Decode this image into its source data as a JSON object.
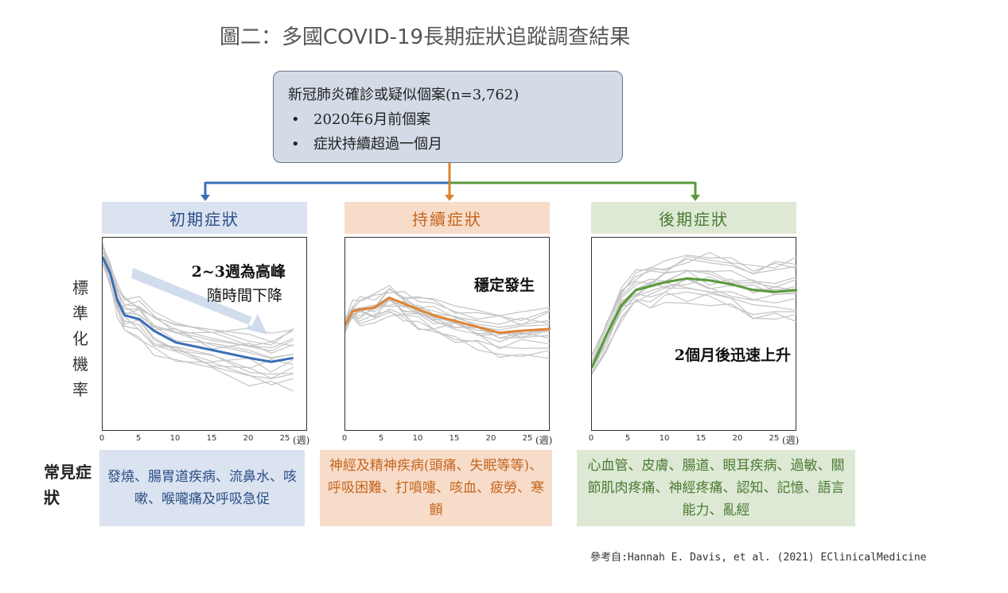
{
  "title": "圖二：多國COVID-19長期症狀追蹤調查結果",
  "top_box": {
    "heading": "新冠肺炎確診或疑似個案(n=3,762)",
    "bullets": [
      "2020年6月前個案",
      "症狀持續超過一個月"
    ]
  },
  "colors": {
    "blue": "#3a6fb7",
    "orange": "#de8433",
    "green": "#5a9a3a",
    "gray_lines": "#c4c4c4"
  },
  "y_axis_label": "標準化機率",
  "common_label": "常見症狀",
  "x_ticks": [
    "0",
    "5",
    "10",
    "15",
    "20",
    "25"
  ],
  "x_unit": "(週)",
  "panels": [
    {
      "header": "初期症狀",
      "annotation": [
        "2~3週為高峰",
        "隨時間下降"
      ],
      "symptoms": "發燒、腸胃道疾病、流鼻水、咳嗽、喉嚨痛及呼吸急促"
    },
    {
      "header": "持續症狀",
      "annotation": [
        "穩定發生"
      ],
      "symptoms": "神經及精神疾病(頭痛、失眠等等)、呼吸困難、打噴嚏、咳血、疲勞、寒顫"
    },
    {
      "header": "後期症狀",
      "annotation": [
        "2個月後迅速上升"
      ],
      "symptoms": "心血管、皮膚、腸道、眼耳疾病、過敏、關節肌肉疼痛、神經疼痛、認知、記憶、語言能力、亂經"
    }
  ],
  "reference": "參考自:Hannah E. Davis, et al. (2021) EClinicalMedicine",
  "chart_data": [
    {
      "type": "line",
      "x": [
        0,
        1,
        2,
        3,
        5,
        7,
        10,
        15,
        20,
        23,
        26
      ],
      "ylim": [
        0,
        1
      ],
      "xlim": [
        0,
        28
      ],
      "series": [
        {
          "values": [
            0.9,
            0.82,
            0.68,
            0.6,
            0.58,
            0.52,
            0.46,
            0.42,
            0.38,
            0.36,
            0.38
          ]
        }
      ]
    },
    {
      "type": "line",
      "x": [
        0,
        1,
        2,
        4,
        6,
        8,
        10,
        12,
        15,
        18,
        21,
        24,
        28
      ],
      "ylim": [
        0,
        1
      ],
      "xlim": [
        0,
        28
      ],
      "series": [
        {
          "values": [
            0.55,
            0.62,
            0.63,
            0.64,
            0.69,
            0.66,
            0.63,
            0.6,
            0.57,
            0.54,
            0.51,
            0.52,
            0.53
          ]
        }
      ]
    },
    {
      "type": "line",
      "x": [
        0,
        2,
        4,
        6,
        8,
        10,
        13,
        16,
        19,
        22,
        25,
        28
      ],
      "ylim": [
        0,
        1
      ],
      "xlim": [
        0,
        28
      ],
      "series": [
        {
          "values": [
            0.33,
            0.5,
            0.65,
            0.73,
            0.75,
            0.77,
            0.79,
            0.78,
            0.76,
            0.73,
            0.72,
            0.73
          ]
        }
      ]
    }
  ]
}
